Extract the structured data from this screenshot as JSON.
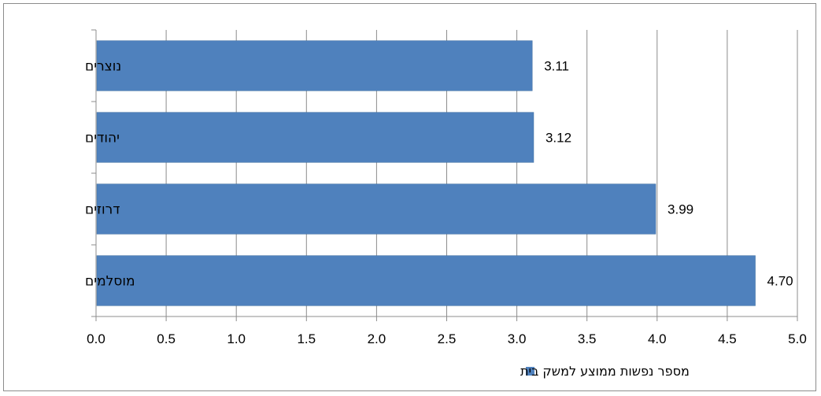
{
  "chart_data": {
    "type": "bar",
    "orientation": "horizontal",
    "categories": [
      "נוצרים",
      "יהודים",
      "דרוזים",
      "מוסלמים"
    ],
    "series": [
      {
        "name": "מספר נפשות ממוצע למשק בית",
        "values": [
          3.11,
          3.12,
          3.99,
          4.7
        ],
        "color": "#4f81bd"
      }
    ],
    "data_labels": [
      "3.11",
      "3.12",
      "3.99",
      "4.70"
    ],
    "x_ticks": [
      "0.0",
      "0.5",
      "1.0",
      "1.5",
      "2.0",
      "2.5",
      "3.0",
      "3.5",
      "4.0",
      "4.5",
      "5.0"
    ],
    "xlim": [
      0,
      5
    ],
    "title": "",
    "xlabel": "",
    "ylabel": "",
    "grid": "vertical",
    "legend_position": "bottom"
  }
}
